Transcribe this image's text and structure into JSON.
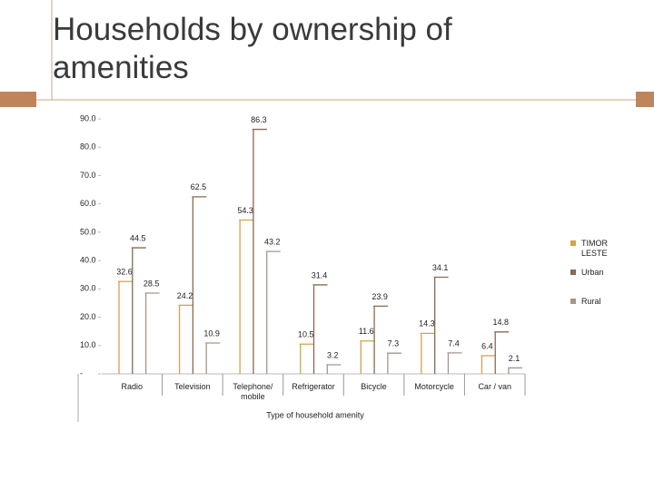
{
  "chart_data": {
    "type": "bar",
    "title": "Households by ownership of amenities",
    "x_label": "Type of household amenity",
    "categories": [
      "Radio",
      "Television",
      "Telephone/ mobile",
      "Refrigerator",
      "Bicycle",
      "Motorcycle",
      "Car / van"
    ],
    "series": [
      {
        "name": "TIMOR LESTE",
        "color": "#d4a24c",
        "values": [
          32.6,
          24.2,
          54.3,
          10.5,
          11.6,
          14.3,
          6.4
        ]
      },
      {
        "name": "Urban",
        "color": "#8a6a52",
        "values": [
          44.5,
          62.5,
          86.3,
          31.4,
          23.9,
          34.1,
          14.8
        ]
      },
      {
        "name": "Rural",
        "color": "#a3968c",
        "values": [
          28.5,
          10.9,
          43.2,
          3.2,
          7.3,
          7.4,
          2.1
        ]
      }
    ],
    "ylim": [
      0,
      90
    ],
    "yticks": [
      {
        "value": 0,
        "label": "-"
      },
      {
        "value": 10,
        "label": "10.0"
      },
      {
        "value": 20,
        "label": "20.0"
      },
      {
        "value": 30,
        "label": "30.0"
      },
      {
        "value": 40,
        "label": "40.0"
      },
      {
        "value": 50,
        "label": "50.0"
      },
      {
        "value": 60,
        "label": "60.0"
      },
      {
        "value": 70,
        "label": "70.0"
      },
      {
        "value": 80,
        "label": "80.0"
      },
      {
        "value": 90,
        "label": "90.0"
      }
    ],
    "legend": "right"
  }
}
